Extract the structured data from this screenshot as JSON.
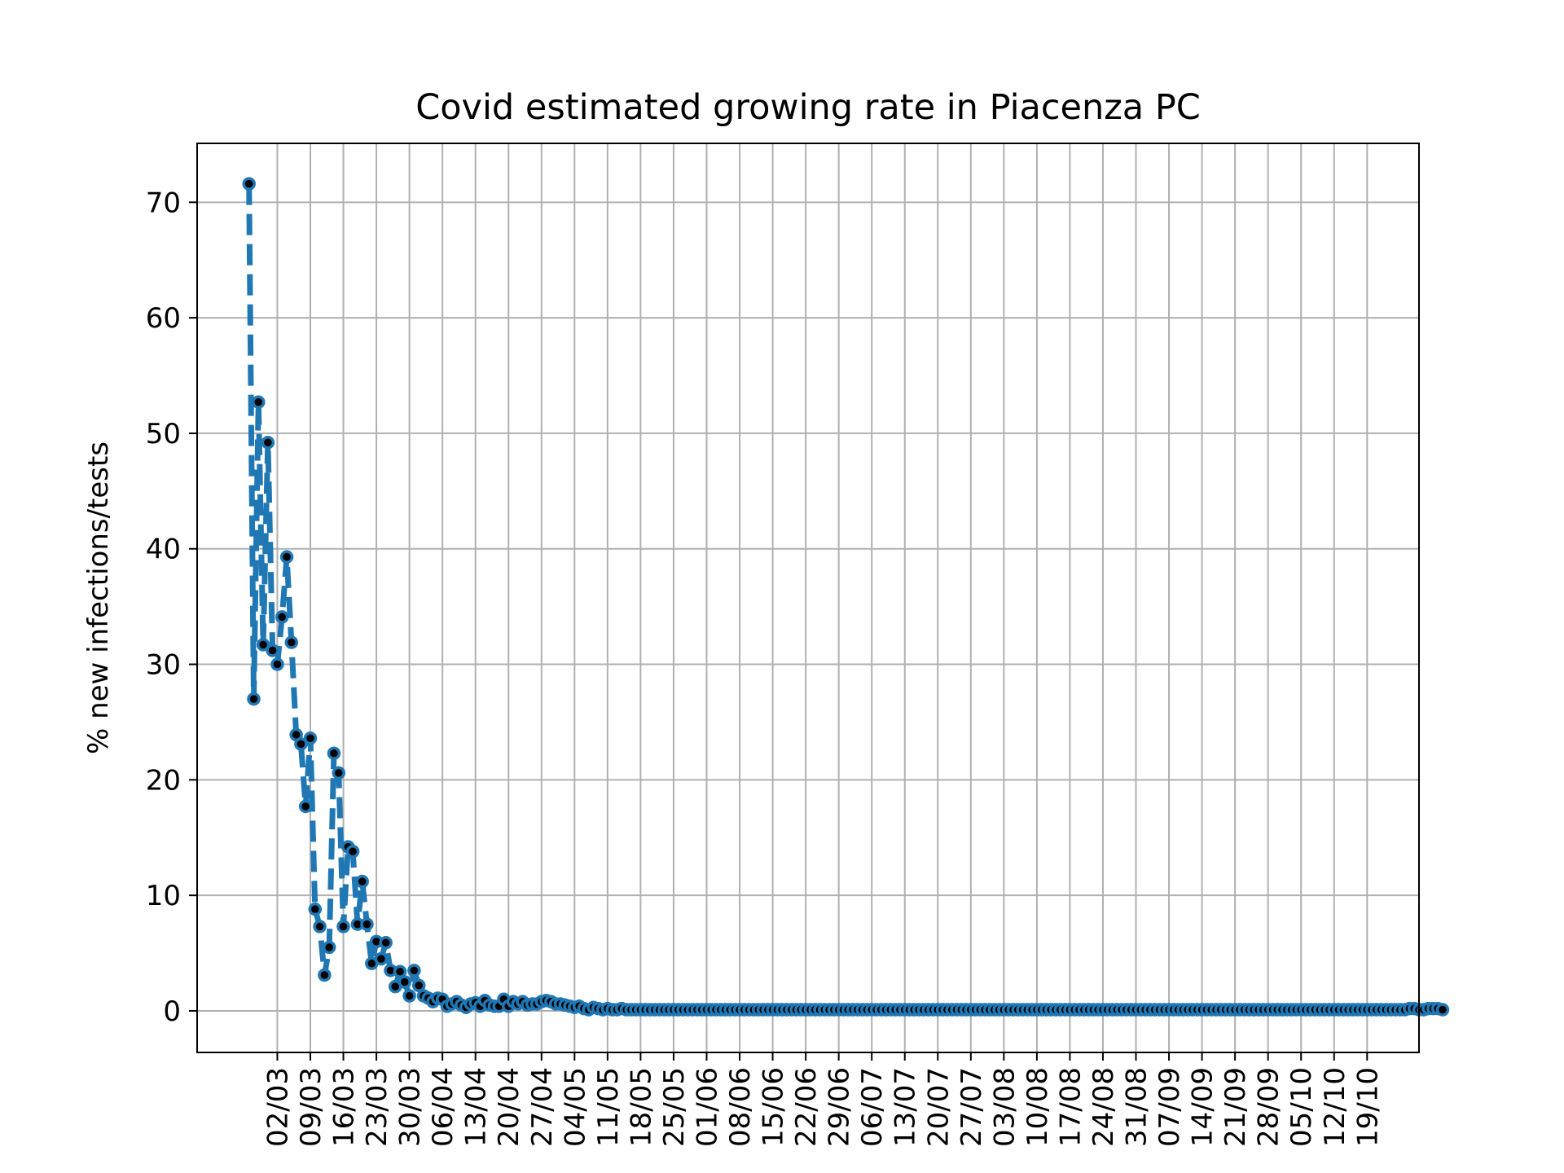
{
  "chart_data": {
    "type": "line",
    "title": "Covid estimated growing rate in Piacenza PC",
    "xlabel": "",
    "ylabel": "% new infections/tests",
    "ylim": [
      -3.6,
      75.1
    ],
    "yticks": [
      0,
      10,
      20,
      30,
      40,
      50,
      60,
      70
    ],
    "x_start_date": "2020-02-25",
    "x_end_date": "2020-10-19",
    "xticks": [
      "02/03",
      "09/03",
      "16/03",
      "23/03",
      "30/03",
      "06/04",
      "13/04",
      "20/04",
      "27/04",
      "04/05",
      "11/05",
      "18/05",
      "25/05",
      "01/06",
      "08/06",
      "15/06",
      "22/06",
      "29/06",
      "06/07",
      "13/07",
      "20/07",
      "27/07",
      "03/08",
      "10/08",
      "17/08",
      "24/08",
      "31/08",
      "07/09",
      "14/09",
      "21/09",
      "28/09",
      "05/10",
      "12/10",
      "19/10"
    ],
    "grid": true,
    "series": [
      {
        "name": "",
        "color": "#1f77b4",
        "marker_color": "#000000",
        "line_style": "dashed",
        "values": [
          71.6,
          27.0,
          52.7,
          31.7,
          49.2,
          31.2,
          30.0,
          34.1,
          39.3,
          31.9,
          23.9,
          23.1,
          17.7,
          23.6,
          8.8,
          7.3,
          3.1,
          5.5,
          22.3,
          20.6,
          7.3,
          14.2,
          13.8,
          7.5,
          11.2,
          7.5,
          4.1,
          6.0,
          4.5,
          5.9,
          3.5,
          2.1,
          3.4,
          2.5,
          1.3,
          3.5,
          2.2,
          1.3,
          1.1,
          0.8,
          1.1,
          1.0,
          0.4,
          0.6,
          0.8,
          0.5,
          0.3,
          0.6,
          0.7,
          0.4,
          0.9,
          0.5,
          0.4,
          0.4,
          1.0,
          0.4,
          0.8,
          0.6,
          0.8,
          0.5,
          0.6,
          0.6,
          0.8,
          0.9,
          0.8,
          0.6,
          0.6,
          0.5,
          0.4,
          0.3,
          0.4,
          0.2,
          0.1,
          0.3,
          0.2,
          0.1,
          0.2,
          0.1,
          0.1,
          0.2,
          0.1,
          0.1,
          0.1,
          0.1,
          0.1,
          0.1,
          0.1,
          0.1,
          0.1,
          0.1,
          0.1,
          0.1,
          0.1,
          0.1,
          0.1,
          0.1,
          0.1,
          0.1,
          0.1,
          0.1,
          0.1,
          0.1,
          0.1,
          0.1,
          0.1,
          0.1,
          0.1,
          0.1,
          0.1,
          0.1,
          0.1,
          0.1,
          0.1,
          0.1,
          0.1,
          0.1,
          0.1,
          0.1,
          0.1,
          0.1,
          0.1,
          0.1,
          0.1,
          0.1,
          0.1,
          0.1,
          0.1,
          0.1,
          0.1,
          0.1,
          0.1,
          0.1,
          0.1,
          0.1,
          0.1,
          0.1,
          0.1,
          0.1,
          0.1,
          0.1,
          0.1,
          0.1,
          0.1,
          0.1,
          0.1,
          0.1,
          0.1,
          0.1,
          0.1,
          0.1,
          0.1,
          0.1,
          0.1,
          0.1,
          0.1,
          0.1,
          0.1,
          0.1,
          0.1,
          0.1,
          0.1,
          0.1,
          0.1,
          0.1,
          0.1,
          0.1,
          0.1,
          0.1,
          0.1,
          0.1,
          0.1,
          0.1,
          0.1,
          0.1,
          0.1,
          0.1,
          0.1,
          0.1,
          0.1,
          0.1,
          0.1,
          0.1,
          0.1,
          0.1,
          0.1,
          0.1,
          0.1,
          0.1,
          0.1,
          0.1,
          0.1,
          0.1,
          0.1,
          0.1,
          0.1,
          0.1,
          0.1,
          0.1,
          0.1,
          0.1,
          0.1,
          0.1,
          0.1,
          0.1,
          0.1,
          0.1,
          0.1,
          0.1,
          0.1,
          0.1,
          0.1,
          0.1,
          0.1,
          0.1,
          0.1,
          0.1,
          0.1,
          0.1,
          0.1,
          0.1,
          0.1,
          0.1,
          0.1,
          0.1,
          0.1,
          0.1,
          0.1,
          0.1,
          0.1,
          0.1,
          0.1,
          0.1,
          0.1,
          0.1,
          0.1,
          0.1,
          0.1,
          0.1,
          0.1,
          0.1,
          0.1,
          0.1,
          0.1,
          0.1,
          0.1,
          0.1,
          0.2,
          0.2,
          0.1,
          0.1,
          0.2,
          0.2,
          0.2,
          0.1
        ]
      }
    ]
  }
}
